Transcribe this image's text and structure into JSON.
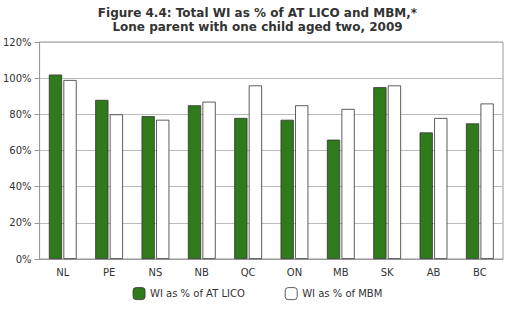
{
  "chart_data": {
    "type": "bar",
    "title": "Figure 4.4: Total WI as % of AT LICO and MBM,*",
    "subtitle": "Lone parent with one child aged two, 2009",
    "categories": [
      "NL",
      "PE",
      "NS",
      "NB",
      "QC",
      "ON",
      "MB",
      "SK",
      "AB",
      "BC"
    ],
    "series": [
      {
        "name": "WI as % of AT LICO",
        "color": "#2f7a1a",
        "values": [
          102,
          88,
          79,
          85,
          78,
          77,
          66,
          95,
          70,
          75
        ]
      },
      {
        "name": "WI as % of MBM",
        "color": "#ffffff",
        "values": [
          99,
          80,
          77,
          87,
          96,
          85,
          83,
          96,
          78,
          86
        ]
      }
    ],
    "ylim": [
      0,
      120
    ],
    "yticks": [
      {
        "value": 0,
        "label": "0%"
      },
      {
        "value": 20,
        "label": "20%"
      },
      {
        "value": 40,
        "label": "40%"
      },
      {
        "value": 60,
        "label": "60%"
      },
      {
        "value": 80,
        "label": "80%"
      },
      {
        "value": 100,
        "label": "100%"
      },
      {
        "value": 120,
        "label": "120%"
      }
    ],
    "grid": true,
    "legend": "bottom"
  }
}
